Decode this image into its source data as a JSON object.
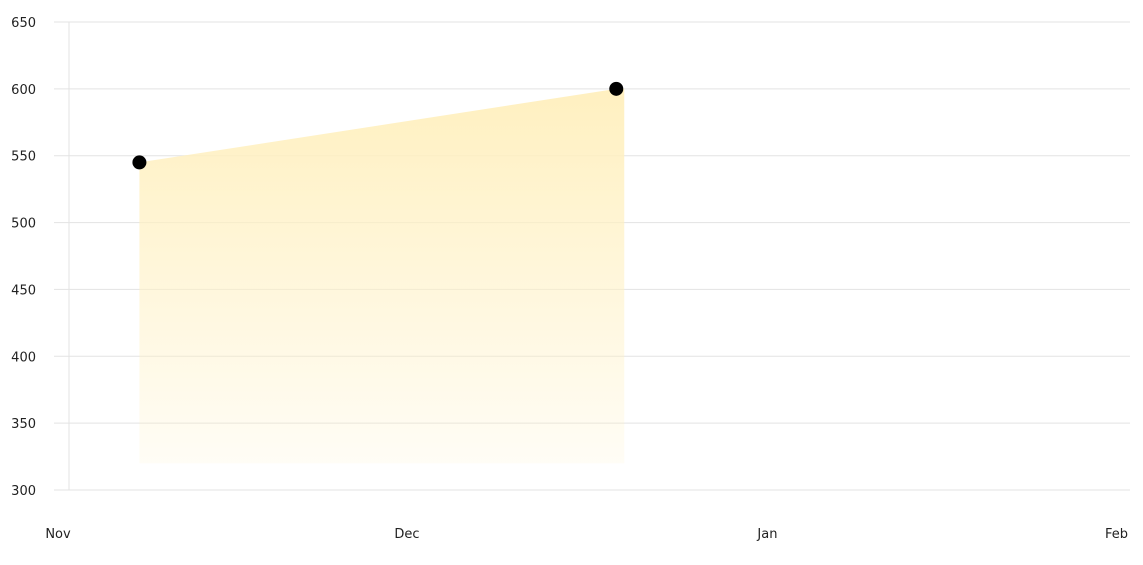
{
  "chart_data": {
    "type": "area",
    "title": "",
    "xlabel": "",
    "ylabel": "",
    "x_ticks": [
      "Nov",
      "Dec",
      "Jan",
      "Feb"
    ],
    "x_tick_dates": [
      "2023-11-01",
      "2023-12-01",
      "2024-01-01",
      "2024-02-01"
    ],
    "y_ticks": [
      300,
      350,
      400,
      450,
      500,
      550,
      600,
      650
    ],
    "ylim": [
      300,
      650
    ],
    "xlim": [
      "2023-11-01",
      "2024-02-01"
    ],
    "grid": true,
    "series": [
      {
        "color": "#000000",
        "fill_color": "#fff0c0",
        "points": [
          {
            "x": "2023-11-08",
            "y": 545
          },
          {
            "x": "2023-12-19",
            "y": 600
          }
        ]
      }
    ]
  }
}
